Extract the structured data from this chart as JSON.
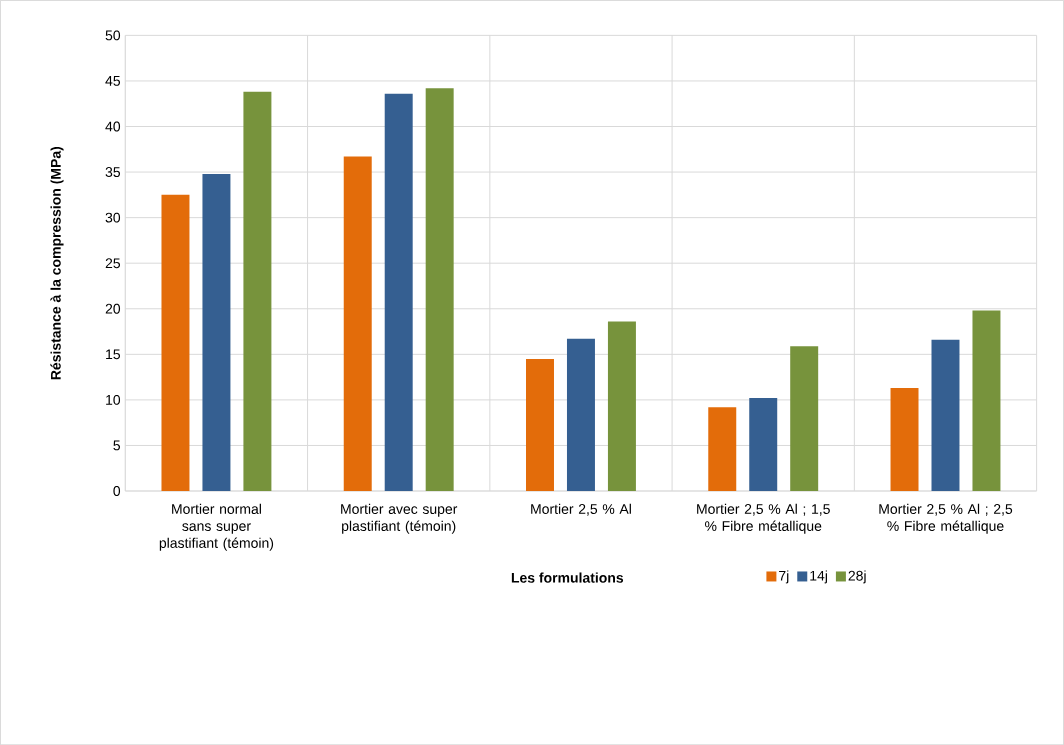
{
  "chart_data": {
    "type": "bar",
    "xlabel": "Les formulations",
    "ylabel": "Résistance à la compression (MPa)",
    "categories": [
      "Mortier normal sans super plastifiant (témoin)",
      "Mortier avec super plastifiant (témoin)",
      "Mortier 2,5 % Al",
      "Mortier 2,5 % Al ; 1,5 % Fibre métallique",
      "Mortier 2,5 % Al ; 2,5 % Fibre métallique"
    ],
    "series": [
      {
        "name": "7j",
        "color": "#e36c0a",
        "values": [
          32.5,
          36.7,
          14.5,
          9.2,
          11.3
        ]
      },
      {
        "name": "14j",
        "color": "#355f91",
        "values": [
          34.8,
          43.6,
          16.7,
          10.2,
          16.6
        ]
      },
      {
        "name": "28j",
        "color": "#77933c",
        "values": [
          43.8,
          44.2,
          18.6,
          15.9,
          19.8
        ]
      }
    ],
    "ylim": [
      0,
      50
    ],
    "yticks": [
      0,
      5,
      10,
      15,
      20,
      25,
      30,
      35,
      40,
      45,
      50
    ],
    "grid": true,
    "legend": "bottom"
  }
}
